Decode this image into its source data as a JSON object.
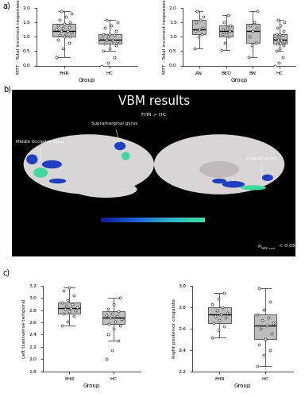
{
  "chart_data": [
    {
      "type": "box",
      "panel": "a)",
      "xlabel": "Group",
      "ylabel": "MTT - Total incorrect responses",
      "categories": [
        "FHR",
        "HC"
      ],
      "color": "#bdbdbd",
      "box_stats": [
        {
          "whislo": 0.3,
          "q1": 1.0,
          "med": 1.2,
          "q3": 1.45,
          "whishi": 1.9
        },
        {
          "whislo": 0.5,
          "q1": 0.75,
          "med": 0.9,
          "q3": 1.1,
          "whishi": 1.6
        }
      ],
      "points": [
        [
          0.3,
          0.6,
          0.8,
          0.9,
          1.0,
          1.0,
          1.05,
          1.1,
          1.15,
          1.2,
          1.2,
          1.25,
          1.3,
          1.35,
          1.4,
          1.45,
          1.5,
          1.6,
          1.7,
          1.8,
          1.9
        ],
        [
          0.0,
          0.1,
          0.3,
          0.5,
          0.6,
          0.7,
          0.75,
          0.8,
          0.85,
          0.9,
          0.9,
          0.95,
          1.0,
          1.05,
          1.1,
          1.1,
          1.2,
          1.3,
          1.4,
          1.5,
          1.6
        ]
      ],
      "ylim": [
        0,
        2
      ],
      "yticks": [
        {
          "value": 0,
          "label": "0.0"
        },
        {
          "value": 0.5,
          "label": "0.5"
        },
        {
          "value": 1,
          "label": "1.0"
        },
        {
          "value": 1.5,
          "label": "1.5"
        },
        {
          "value": 2,
          "label": "2.0"
        }
      ]
    },
    {
      "type": "box",
      "panel": "a)",
      "xlabel": "Group",
      "ylabel": "MTT - Total incorrect responses",
      "categories": [
        "AN",
        "BED",
        "BN",
        "HC"
      ],
      "color": "#bdbdbd",
      "box_stats": [
        {
          "whislo": 0.6,
          "q1": 1.1,
          "med": 1.25,
          "q3": 1.6,
          "whishi": 1.9
        },
        {
          "whislo": 0.55,
          "q1": 1.0,
          "med": 1.2,
          "q3": 1.4,
          "whishi": 1.75
        },
        {
          "whislo": 0.3,
          "q1": 0.8,
          "med": 1.2,
          "q3": 1.45,
          "whishi": 1.9
        },
        {
          "whislo": 0.5,
          "q1": 0.75,
          "med": 0.9,
          "q3": 1.1,
          "whishi": 1.6
        }
      ],
      "points": [
        [
          0.6,
          1.0,
          1.1,
          1.2,
          1.25,
          1.3,
          1.5,
          1.6,
          1.7,
          1.9
        ],
        [
          0.55,
          0.8,
          1.0,
          1.1,
          1.15,
          1.2,
          1.25,
          1.3,
          1.4,
          1.5,
          1.75
        ],
        [
          0.3,
          0.7,
          0.8,
          1.0,
          1.2,
          1.3,
          1.4,
          1.5,
          1.9
        ],
        [
          0.0,
          0.1,
          0.3,
          0.5,
          0.6,
          0.7,
          0.75,
          0.8,
          0.85,
          0.9,
          0.9,
          0.95,
          1.0,
          1.05,
          1.1,
          1.1,
          1.2,
          1.3,
          1.4,
          1.5,
          1.6
        ]
      ],
      "ylim": [
        0,
        2
      ],
      "yticks": [
        {
          "value": 0,
          "label": "0.0"
        },
        {
          "value": 0.5,
          "label": "0.5"
        },
        {
          "value": 1,
          "label": "1.0"
        },
        {
          "value": 1.5,
          "label": "1.5"
        },
        {
          "value": 2,
          "label": "2.0"
        }
      ]
    },
    {
      "type": "box",
      "panel": "c)",
      "xlabel": "Group",
      "ylabel": "Left transverse temporal",
      "categories": [
        "FHR",
        "HC"
      ],
      "color": "#bdbdbd",
      "box_stats": [
        {
          "whislo": 2.55,
          "q1": 2.75,
          "med": 2.83,
          "q3": 2.93,
          "whishi": 3.18
        },
        {
          "whislo": 2.3,
          "q1": 2.58,
          "med": 2.68,
          "q3": 2.78,
          "whishi": 3.0
        }
      ],
      "points": [
        [
          2.55,
          2.62,
          2.7,
          2.75,
          2.78,
          2.8,
          2.82,
          2.83,
          2.85,
          2.88,
          2.9,
          2.93,
          2.97,
          3.05,
          3.12,
          3.18
        ],
        [
          2.0,
          2.15,
          2.3,
          2.4,
          2.5,
          2.55,
          2.58,
          2.62,
          2.65,
          2.68,
          2.7,
          2.72,
          2.75,
          2.78,
          2.82,
          2.9,
          3.0
        ]
      ],
      "ylim": [
        1.8,
        3.2
      ],
      "yticks": [
        1.8,
        {
          "value": 2,
          "label": "2.0"
        },
        2.2,
        2.4,
        2.6,
        2.8,
        {
          "value": 3,
          "label": "3.0"
        },
        3.2
      ]
    },
    {
      "type": "box",
      "panel": "c)",
      "xlabel": "Group",
      "ylabel": "Right posterior cingulate",
      "categories": [
        "FHR",
        "HC"
      ],
      "color": "#bdbdbd",
      "box_stats": [
        {
          "whislo": 2.52,
          "q1": 2.65,
          "med": 2.73,
          "q3": 2.8,
          "whishi": 2.93
        },
        {
          "whislo": 2.25,
          "q1": 2.5,
          "med": 2.63,
          "q3": 2.73,
          "whishi": 2.98
        }
      ],
      "points": [
        [
          2.52,
          2.58,
          2.62,
          2.65,
          2.68,
          2.7,
          2.72,
          2.73,
          2.75,
          2.77,
          2.8,
          2.83,
          2.88,
          2.93
        ],
        [
          2.25,
          2.35,
          2.4,
          2.45,
          2.5,
          2.55,
          2.6,
          2.63,
          2.65,
          2.68,
          2.7,
          2.73,
          2.78,
          2.85,
          2.98
        ]
      ],
      "ylim": [
        2.2,
        3.0
      ],
      "yticks": [
        2.2,
        2.4,
        2.6,
        2.8,
        {
          "value": 3,
          "label": "3.0"
        }
      ]
    }
  ],
  "vbm_panel": {
    "panel": "b)",
    "title": "VBM results",
    "subtitle": "FHR > HC",
    "regions": [
      "Supramarginal gyrus",
      "Middle Occipital Gyrus",
      "Lingual gyrus"
    ],
    "threshold_symbol": "p",
    "threshold_subscript": "FWE-corr",
    "threshold_text": "< 0.05"
  }
}
